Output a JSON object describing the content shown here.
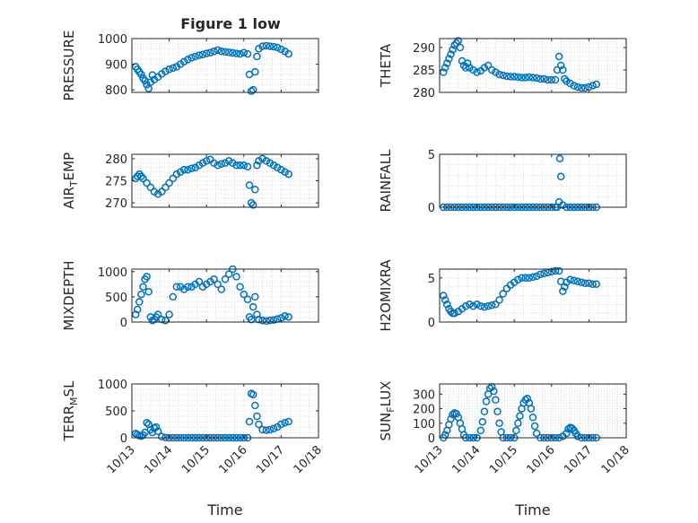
{
  "figure": {
    "title": "Figure 1 low"
  },
  "colors": {
    "series": "#0072BD",
    "axis": "#262626",
    "grid": "#d9d9d9"
  },
  "x_axis": {
    "label": "Time",
    "lim": [
      13,
      18
    ],
    "ticks": [
      13,
      14,
      15,
      16,
      17,
      18
    ],
    "tick_labels": [
      "10/13",
      "10/14",
      "10/15",
      "10/16",
      "10/17",
      "10/18"
    ]
  },
  "chart_data": [
    {
      "type": "scatter",
      "ylabel": "PRESSURE",
      "ylim": [
        790,
        1000
      ],
      "yticks": [
        800,
        900,
        1000
      ],
      "yticklabels": [
        "800",
        "900",
        "1000"
      ],
      "grid": true,
      "series": [
        {
          "x": [
            13.1,
            13.15,
            13.2,
            13.25,
            13.3,
            13.35,
            13.4,
            13.45,
            13.5,
            13.55,
            13.6,
            13.7,
            13.8,
            13.9,
            14.0,
            14.1,
            14.2,
            14.3,
            14.4,
            14.5,
            14.6,
            14.7,
            14.8,
            14.9,
            15.0,
            15.1,
            15.2,
            15.3,
            15.4,
            15.5,
            15.6,
            15.7,
            15.8,
            15.9,
            16.0,
            16.1,
            16.15,
            16.2,
            16.25,
            16.3,
            16.35,
            16.4,
            16.5,
            16.6,
            16.7,
            16.8,
            16.9,
            17.0,
            17.1,
            17.2
          ],
          "y": [
            890,
            880,
            870,
            860,
            845,
            835,
            820,
            805,
            830,
            858,
            840,
            850,
            862,
            872,
            880,
            885,
            890,
            900,
            910,
            918,
            925,
            930,
            935,
            938,
            942,
            945,
            950,
            955,
            950,
            948,
            946,
            944,
            942,
            940,
            945,
            940,
            860,
            795,
            800,
            870,
            930,
            960,
            970,
            972,
            970,
            968,
            965,
            958,
            950,
            940
          ]
        }
      ]
    },
    {
      "type": "scatter",
      "ylabel": "THETA",
      "ylim": [
        280,
        292
      ],
      "yticks": [
        280,
        285,
        290
      ],
      "yticklabels": [
        "280",
        "285",
        "290"
      ],
      "grid": true,
      "series": [
        {
          "x": [
            13.1,
            13.15,
            13.2,
            13.25,
            13.3,
            13.35,
            13.4,
            13.45,
            13.5,
            13.55,
            13.6,
            13.65,
            13.7,
            13.75,
            13.8,
            13.9,
            14.0,
            14.1,
            14.2,
            14.3,
            14.4,
            14.5,
            14.6,
            14.7,
            14.8,
            14.9,
            15.0,
            15.1,
            15.2,
            15.3,
            15.4,
            15.5,
            15.6,
            15.7,
            15.8,
            15.9,
            16.0,
            16.1,
            16.15,
            16.2,
            16.25,
            16.3,
            16.35,
            16.4,
            16.5,
            16.6,
            16.7,
            16.8,
            16.9,
            17.0,
            17.1,
            17.2
          ],
          "y": [
            284.5,
            285.5,
            286.5,
            287.5,
            288.5,
            289.5,
            290.5,
            291.0,
            291.5,
            290.0,
            287.0,
            286.0,
            285.5,
            286.5,
            285.5,
            285.0,
            284.5,
            284.8,
            285.5,
            286.0,
            285.0,
            284.5,
            284.0,
            283.8,
            283.6,
            283.5,
            283.5,
            283.4,
            283.3,
            283.3,
            283.4,
            283.3,
            283.2,
            283.0,
            283.0,
            282.8,
            282.8,
            282.8,
            285.0,
            288.0,
            286.0,
            285.0,
            283.0,
            282.5,
            282.0,
            281.5,
            281.2,
            281.0,
            281.0,
            281.2,
            281.5,
            281.8
          ]
        }
      ]
    },
    {
      "type": "scatter",
      "ylabel": "AIR_TEMP",
      "ylim": [
        269,
        281
      ],
      "yticks": [
        270,
        275,
        280
      ],
      "yticklabels": [
        "270",
        "275",
        "280"
      ],
      "grid": true,
      "series": [
        {
          "x": [
            13.1,
            13.15,
            13.2,
            13.25,
            13.3,
            13.4,
            13.5,
            13.6,
            13.7,
            13.8,
            13.9,
            14.0,
            14.1,
            14.2,
            14.3,
            14.4,
            14.5,
            14.6,
            14.7,
            14.8,
            14.9,
            15.0,
            15.1,
            15.2,
            15.3,
            15.4,
            15.5,
            15.6,
            15.7,
            15.8,
            15.9,
            16.0,
            16.1,
            16.15,
            16.2,
            16.25,
            16.3,
            16.35,
            16.4,
            16.5,
            16.6,
            16.7,
            16.8,
            16.9,
            17.0,
            17.1,
            17.2
          ],
          "y": [
            275.5,
            276.0,
            276.5,
            276.0,
            275.5,
            274.5,
            273.5,
            272.5,
            272.0,
            272.5,
            273.5,
            274.5,
            275.5,
            276.5,
            277.0,
            277.5,
            277.5,
            277.8,
            278.0,
            278.5,
            279.0,
            279.5,
            279.8,
            279.0,
            278.5,
            278.8,
            279.0,
            279.5,
            279.0,
            278.5,
            278.5,
            278.5,
            278.2,
            274.0,
            270.0,
            269.5,
            273.0,
            278.5,
            279.5,
            280.0,
            279.5,
            279.0,
            278.5,
            278.0,
            277.5,
            277.0,
            276.5
          ]
        }
      ]
    },
    {
      "type": "scatter",
      "ylabel": "RAINFALL",
      "ylim": [
        0,
        5
      ],
      "yticks": [
        0,
        5
      ],
      "yticklabels": [
        "0",
        "5"
      ],
      "grid": true,
      "series": [
        {
          "x": [
            13.1,
            13.2,
            13.3,
            13.4,
            13.5,
            13.6,
            13.7,
            13.8,
            13.9,
            14.0,
            14.1,
            14.2,
            14.3,
            14.4,
            14.5,
            14.6,
            14.7,
            14.8,
            14.9,
            15.0,
            15.1,
            15.2,
            15.3,
            15.4,
            15.5,
            15.6,
            15.7,
            15.8,
            15.9,
            16.0,
            16.1,
            16.15,
            16.2,
            16.22,
            16.25,
            16.3,
            16.4,
            16.5,
            16.6,
            16.7,
            16.8,
            16.9,
            17.0,
            17.1,
            17.2
          ],
          "y": [
            0,
            0,
            0,
            0,
            0,
            0,
            0,
            0,
            0,
            0,
            0,
            0,
            0,
            0,
            0,
            0,
            0,
            0,
            0,
            0,
            0,
            0,
            0,
            0,
            0,
            0,
            0,
            0,
            0,
            0,
            0,
            0,
            0.5,
            4.6,
            2.9,
            0.2,
            0,
            0,
            0,
            0,
            0,
            0,
            0,
            0,
            0
          ]
        }
      ]
    },
    {
      "type": "scatter",
      "ylabel": "MIXDEPTH",
      "ylim": [
        0,
        1050
      ],
      "yticks": [
        0,
        500,
        1000
      ],
      "yticklabels": [
        "0",
        "500",
        "1000"
      ],
      "grid": true,
      "series": [
        {
          "x": [
            13.1,
            13.15,
            13.2,
            13.25,
            13.3,
            13.35,
            13.4,
            13.45,
            13.5,
            13.55,
            13.6,
            13.65,
            13.7,
            13.8,
            13.9,
            14.0,
            14.1,
            14.2,
            14.3,
            14.4,
            14.5,
            14.6,
            14.7,
            14.8,
            14.9,
            15.0,
            15.1,
            15.2,
            15.3,
            15.4,
            15.5,
            15.6,
            15.7,
            15.8,
            15.9,
            16.0,
            16.1,
            16.15,
            16.2,
            16.25,
            16.3,
            16.35,
            16.4,
            16.5,
            16.6,
            16.7,
            16.8,
            16.9,
            17.0,
            17.1,
            17.2
          ],
          "y": [
            150,
            250,
            400,
            550,
            700,
            850,
            900,
            600,
            100,
            30,
            50,
            100,
            150,
            50,
            30,
            150,
            500,
            700,
            700,
            650,
            700,
            700,
            750,
            800,
            700,
            750,
            800,
            850,
            750,
            650,
            850,
            950,
            1050,
            900,
            700,
            550,
            450,
            100,
            50,
            300,
            500,
            150,
            50,
            30,
            20,
            30,
            40,
            60,
            80,
            120,
            100
          ]
        }
      ]
    },
    {
      "type": "scatter",
      "ylabel": "H2OMIXRA",
      "ylim": [
        0,
        6
      ],
      "yticks": [
        0,
        5
      ],
      "yticklabels": [
        "0",
        "5"
      ],
      "grid": true,
      "series": [
        {
          "x": [
            13.1,
            13.15,
            13.2,
            13.25,
            13.3,
            13.35,
            13.4,
            13.5,
            13.6,
            13.7,
            13.8,
            13.9,
            14.0,
            14.1,
            14.2,
            14.3,
            14.4,
            14.5,
            14.6,
            14.7,
            14.8,
            14.9,
            15.0,
            15.1,
            15.2,
            15.3,
            15.4,
            15.5,
            15.6,
            15.7,
            15.8,
            15.9,
            16.0,
            16.1,
            16.2,
            16.25,
            16.3,
            16.35,
            16.4,
            16.5,
            16.6,
            16.7,
            16.8,
            16.9,
            17.0,
            17.1,
            17.2
          ],
          "y": [
            3.0,
            2.5,
            2.0,
            1.5,
            1.2,
            1.0,
            1.0,
            1.2,
            1.5,
            1.8,
            2.0,
            1.8,
            2.0,
            1.8,
            1.7,
            1.8,
            1.9,
            2.0,
            2.5,
            3.2,
            3.8,
            4.2,
            4.5,
            4.8,
            5.0,
            5.0,
            5.0,
            5.1,
            5.2,
            5.4,
            5.5,
            5.6,
            5.7,
            5.8,
            5.8,
            4.6,
            3.5,
            4.0,
            4.5,
            4.8,
            4.7,
            4.6,
            4.5,
            4.4,
            4.4,
            4.3,
            4.3
          ]
        }
      ]
    },
    {
      "type": "scatter",
      "ylabel": "TERR_MSL",
      "ylim": [
        0,
        1000
      ],
      "yticks": [
        0,
        500,
        1000
      ],
      "yticklabels": [
        "0",
        "500",
        "1000"
      ],
      "grid": true,
      "series": [
        {
          "x": [
            13.1,
            13.15,
            13.2,
            13.25,
            13.3,
            13.35,
            13.4,
            13.45,
            13.5,
            13.55,
            13.6,
            13.65,
            13.7,
            13.8,
            13.9,
            14.0,
            14.1,
            14.2,
            14.3,
            14.4,
            14.5,
            14.6,
            14.7,
            14.8,
            14.9,
            15.0,
            15.1,
            15.2,
            15.3,
            15.4,
            15.5,
            15.6,
            15.7,
            15.8,
            15.9,
            16.0,
            16.1,
            16.15,
            16.2,
            16.25,
            16.3,
            16.35,
            16.4,
            16.5,
            16.6,
            16.7,
            16.8,
            16.9,
            17.0,
            17.1,
            17.2
          ],
          "y": [
            80,
            60,
            40,
            30,
            50,
            100,
            280,
            250,
            150,
            100,
            180,
            200,
            120,
            20,
            5,
            0,
            0,
            0,
            0,
            0,
            0,
            0,
            0,
            0,
            0,
            0,
            0,
            0,
            0,
            0,
            0,
            0,
            0,
            0,
            0,
            0,
            0,
            300,
            820,
            800,
            600,
            400,
            250,
            150,
            140,
            150,
            170,
            200,
            250,
            280,
            300
          ]
        }
      ]
    },
    {
      "type": "scatter",
      "ylabel": "SUN_FLUX",
      "ylim": [
        0,
        370
      ],
      "yticks": [
        0,
        100,
        200,
        300
      ],
      "yticklabels": [
        "0",
        "100",
        "200",
        "300"
      ],
      "grid": true,
      "series": [
        {
          "x": [
            13.1,
            13.15,
            13.2,
            13.25,
            13.3,
            13.35,
            13.4,
            13.45,
            13.5,
            13.55,
            13.6,
            13.65,
            13.7,
            13.8,
            13.9,
            14.0,
            14.1,
            14.15,
            14.2,
            14.25,
            14.3,
            14.35,
            14.4,
            14.45,
            14.5,
            14.55,
            14.6,
            14.65,
            14.7,
            14.8,
            14.9,
            15.0,
            15.05,
            15.1,
            15.15,
            15.2,
            15.25,
            15.3,
            15.35,
            15.4,
            15.45,
            15.5,
            15.55,
            15.6,
            15.7,
            15.8,
            15.9,
            16.0,
            16.1,
            16.2,
            16.3,
            16.4,
            16.45,
            16.5,
            16.55,
            16.6,
            16.65,
            16.7,
            16.8,
            16.9,
            17.0,
            17.1,
            17.2
          ],
          "y": [
            0,
            20,
            50,
            90,
            130,
            160,
            170,
            165,
            140,
            100,
            60,
            20,
            0,
            0,
            0,
            0,
            50,
            110,
            180,
            250,
            300,
            340,
            350,
            320,
            260,
            180,
            100,
            40,
            0,
            0,
            0,
            0,
            50,
            100,
            150,
            200,
            240,
            260,
            270,
            240,
            200,
            140,
            80,
            30,
            0,
            0,
            0,
            0,
            0,
            0,
            10,
            30,
            60,
            70,
            65,
            50,
            30,
            10,
            0,
            0,
            0,
            0,
            0
          ]
        }
      ]
    }
  ]
}
